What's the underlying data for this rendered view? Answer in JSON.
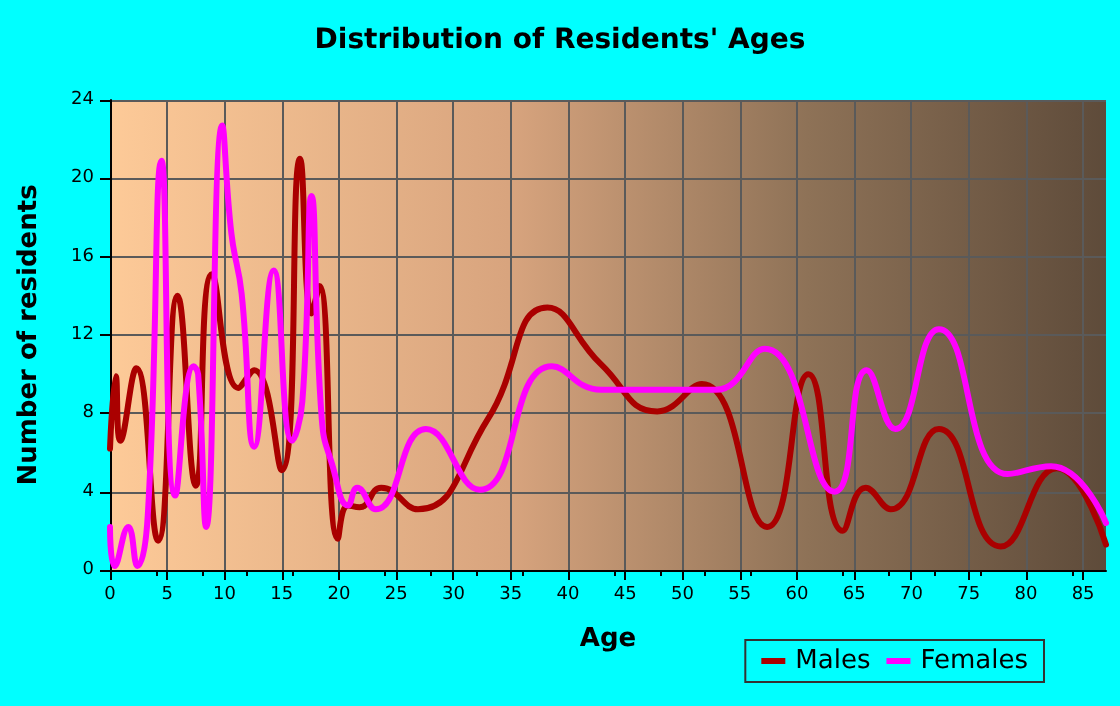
{
  "chart_data": {
    "type": "line",
    "title": "Distribution of Residents' Ages",
    "xlabel": "Age",
    "ylabel": "Number of residents",
    "xlim": [
      0,
      87
    ],
    "xticks": [
      0,
      5,
      10,
      15,
      20,
      25,
      30,
      35,
      40,
      45,
      50,
      55,
      60,
      65,
      70,
      75,
      80,
      85
    ],
    "ylim": [
      0,
      24
    ],
    "yticks": [
      0,
      4,
      8,
      12,
      16,
      20,
      24
    ],
    "grid": true,
    "legend": "bottom right",
    "marker": "none",
    "line_style": "solid",
    "series": [
      {
        "name": "Males",
        "color": "#aa0000",
        "x": [
          0,
          0.5,
          0.9,
          2.3,
          4.2,
          5.9,
          7.5,
          8.9,
          11.2,
          12.6,
          15,
          16.6,
          17.6,
          18.3,
          19.9,
          20.8,
          21.8,
          23.7,
          26.9,
          33,
          38.2,
          42.9,
          47.8,
          51.7,
          57.4,
          61,
          64,
          66,
          68.2,
          72.4,
          77.8,
          82.7,
          87
        ],
        "values": [
          6.2,
          9.9,
          6.6,
          10.3,
          1.5,
          14,
          4.3,
          15.1,
          9.3,
          10.2,
          5.1,
          21,
          13.1,
          14.5,
          1.6,
          3.3,
          3.2,
          4.2,
          3.1,
          7.7,
          13.4,
          10.5,
          8.1,
          9.5,
          2.2,
          10,
          2,
          4.2,
          3.1,
          7.2,
          1.2,
          5.2,
          1.3
        ]
      },
      {
        "name": "Females",
        "color": "#ff00ff",
        "x": [
          0,
          0.4,
          1.6,
          2.4,
          3.3,
          4.5,
          5.7,
          7.3,
          7.7,
          8.4,
          9.8,
          10.6,
          11.5,
          12.6,
          14.3,
          15.9,
          16.8,
          17.6,
          18.5,
          19.4,
          20.8,
          21.6,
          23.2,
          27.6,
          32.3,
          38.6,
          42.9,
          48.7,
          52.9,
          57.2,
          63.3,
          66.1,
          68.6,
          72.4,
          78.4,
          82.2,
          87
        ],
        "values": [
          2.2,
          0.2,
          2.2,
          0.2,
          2.8,
          20.9,
          3.8,
          10.4,
          10,
          2.2,
          22.7,
          17.2,
          14.1,
          6.3,
          15.3,
          6.6,
          8.6,
          19.1,
          7.7,
          5.4,
          3.3,
          4.2,
          3.1,
          7.2,
          4.1,
          10.4,
          9.2,
          9.2,
          9.2,
          11.3,
          4,
          10.2,
          7.2,
          12.3,
          4.9,
          5.3,
          2.4
        ]
      }
    ]
  }
}
